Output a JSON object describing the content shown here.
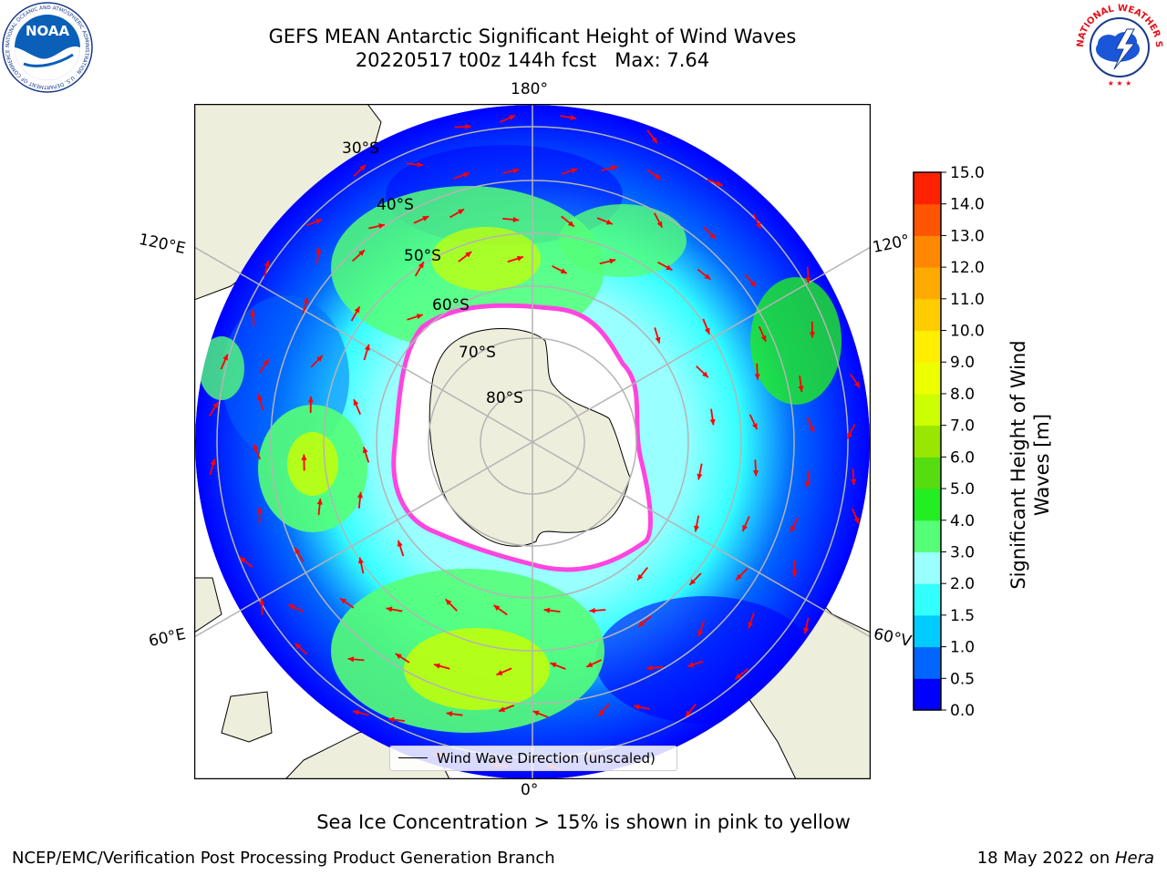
{
  "header": {
    "title_line1": "GEFS MEAN Antarctic Significant Height of Wind Waves",
    "title_line2": "20220517 t00z 144h fcst   Max: 7.64"
  },
  "logos": {
    "noaa": {
      "text": "NOAA",
      "ring_text": "NATIONAL OCEANIC AND ATMOSPHERIC ADMINISTRATION · U.S. DEPARTMENT OF COMMERCE"
    },
    "nws": {
      "ring_text": "NATIONAL WEATHER SERVICE"
    }
  },
  "map": {
    "longitude_labels": {
      "top": "180°",
      "bottom": "0°",
      "upper_left": "120°E",
      "upper_right": "120°",
      "lower_left": "60°E",
      "lower_right": "60°V"
    },
    "latitude_labels": [
      "30°S",
      "40°S",
      "50°S",
      "60°S",
      "70°S",
      "80°S"
    ],
    "legend_label": "Wind Wave Direction (unscaled)",
    "colors": {
      "land": "#eeeedc",
      "ice_edge": "#ff44e0",
      "arrow": "#ff0000",
      "grid": "#b4b4b4"
    }
  },
  "colorbar": {
    "label": "Significant Height of Wind\nWaves [m]",
    "ticks": [
      "0.0",
      "0.5",
      "1.0",
      "1.5",
      "2.0",
      "3.0",
      "4.0",
      "5.0",
      "6.0",
      "7.0",
      "8.0",
      "9.0",
      "10.0",
      "11.0",
      "12.0",
      "13.0",
      "14.0",
      "15.0"
    ],
    "colors": [
      "#0000ff",
      "#0066ff",
      "#00ccff",
      "#33ffff",
      "#99ffff",
      "#55ff77",
      "#22ee22",
      "#55dd11",
      "#99e600",
      "#ccff00",
      "#eeff00",
      "#ffee00",
      "#ffcc00",
      "#ffaa00",
      "#ff8800",
      "#ff5500",
      "#ff2200"
    ]
  },
  "notes": {
    "sea_ice": "Sea Ice Concentration > 15% is shown in pink to yellow"
  },
  "footer": {
    "left": "NCEP/EMC/Verification Post Processing Product Generation Branch",
    "right_prefix": "18 May 2022 on ",
    "right_host": "Hera"
  }
}
